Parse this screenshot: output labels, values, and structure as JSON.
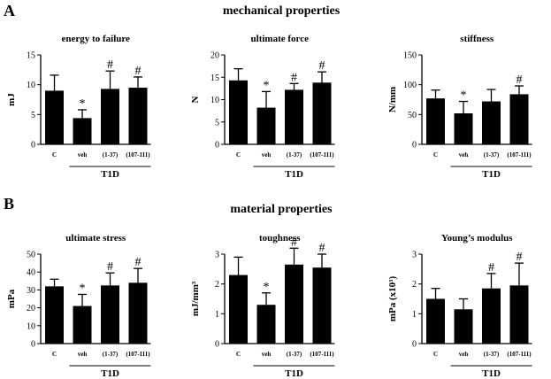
{
  "panels": [
    {
      "label": "A",
      "title": "mechanical properties"
    },
    {
      "label": "B",
      "title": "material properties"
    }
  ],
  "chart_data": [
    {
      "type": "bar",
      "title": "energy to failure",
      "ylabel": "mJ",
      "ylim": [
        0,
        15
      ],
      "yticks": [
        0,
        5,
        10,
        15
      ],
      "categories": [
        "C",
        "veh",
        "(1-37)",
        "(107-111)"
      ],
      "group_label": "T1D",
      "values": [
        9.0,
        4.4,
        9.3,
        9.5
      ],
      "errors": [
        2.6,
        1.4,
        3.0,
        1.8
      ],
      "markers": [
        "",
        "*",
        "#",
        "#"
      ]
    },
    {
      "type": "bar",
      "title": "ultimate force",
      "ylabel": "N",
      "ylim": [
        0,
        20
      ],
      "yticks": [
        0,
        5,
        10,
        15,
        20
      ],
      "categories": [
        "C",
        "veh",
        "(1-37)",
        "(107-111)"
      ],
      "group_label": "T1D",
      "values": [
        14.3,
        8.2,
        12.2,
        13.8
      ],
      "errors": [
        2.6,
        3.6,
        1.4,
        2.4
      ],
      "markers": [
        "",
        "*",
        "#",
        "#"
      ]
    },
    {
      "type": "bar",
      "title": "stiffness",
      "ylabel": "N/mm",
      "ylim": [
        0,
        150
      ],
      "yticks": [
        0,
        50,
        100,
        150
      ],
      "categories": [
        "C",
        "veh",
        "(1-37)",
        "(107-111)"
      ],
      "group_label": "T1D",
      "values": [
        77,
        52,
        72,
        84
      ],
      "errors": [
        14,
        20,
        20,
        14
      ],
      "markers": [
        "",
        "*",
        "",
        "#"
      ]
    },
    {
      "type": "bar",
      "title": "ultimate stress",
      "ylabel": "mPa",
      "ylim": [
        0,
        50
      ],
      "yticks": [
        0,
        10,
        20,
        30,
        40,
        50
      ],
      "categories": [
        "C",
        "veh",
        "(1-37)",
        "(107-111)"
      ],
      "group_label": "T1D",
      "values": [
        32,
        21,
        32.5,
        34
      ],
      "errors": [
        4,
        6.5,
        7,
        8
      ],
      "markers": [
        "",
        "*",
        "#",
        "#"
      ]
    },
    {
      "type": "bar",
      "title": "toughness",
      "ylabel": "mJ/mm³",
      "ylim": [
        0,
        3
      ],
      "yticks": [
        0,
        1,
        2,
        3
      ],
      "categories": [
        "C",
        "veh",
        "(1-37)",
        "(107-111)"
      ],
      "group_label": "T1D",
      "values": [
        2.3,
        1.3,
        2.65,
        2.55
      ],
      "errors": [
        0.6,
        0.4,
        0.55,
        0.45
      ],
      "markers": [
        "",
        "*",
        "#",
        "#"
      ]
    },
    {
      "type": "bar",
      "title": "Young’s modulus",
      "ylabel": "mPa (x10³)",
      "ylim": [
        0,
        3
      ],
      "yticks": [
        0,
        1,
        2,
        3
      ],
      "categories": [
        "C",
        "veh",
        "(1-37)",
        "(107-111)"
      ],
      "group_label": "T1D",
      "values": [
        1.5,
        1.15,
        1.85,
        1.95
      ],
      "errors": [
        0.35,
        0.35,
        0.5,
        0.75
      ],
      "markers": [
        "",
        "",
        "#",
        "#"
      ]
    }
  ]
}
